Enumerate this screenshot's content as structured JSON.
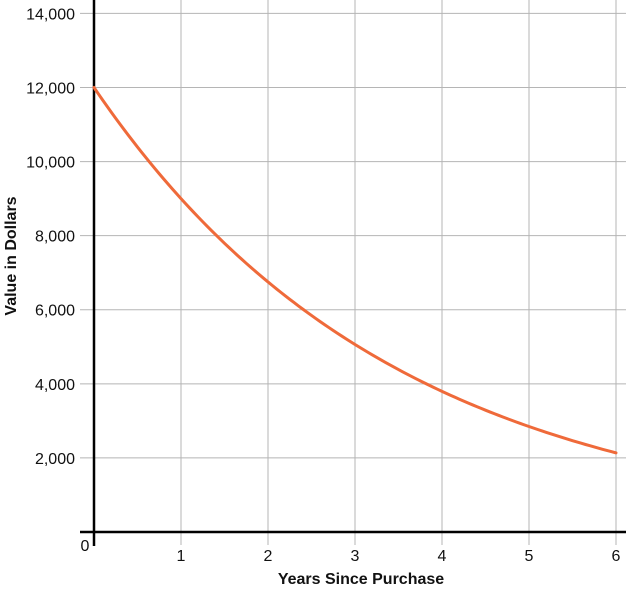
{
  "chart_data": {
    "type": "line",
    "title": "",
    "xlabel": "Years Since Purchase",
    "ylabel": "Value in Dollars",
    "xlim": [
      0,
      6
    ],
    "ylim": [
      0,
      14000
    ],
    "x_ticks": [
      "1",
      "2",
      "3",
      "4",
      "5",
      "6"
    ],
    "y_ticks": [
      "2,000",
      "4,000",
      "6,000",
      "8,000",
      "10,000",
      "12,000",
      "14,000"
    ],
    "origin_label": "0",
    "grid": true,
    "series": [
      {
        "color": "#ef6a3a",
        "x": [
          0,
          0.5,
          1,
          1.5,
          2,
          2.5,
          3,
          3.5,
          4,
          4.5,
          5,
          5.5,
          6
        ],
        "y": [
          12000,
          10392,
          9000,
          7794,
          6750,
          5846,
          5063,
          4384,
          3797,
          3288,
          2848,
          2466,
          2136
        ]
      }
    ]
  }
}
